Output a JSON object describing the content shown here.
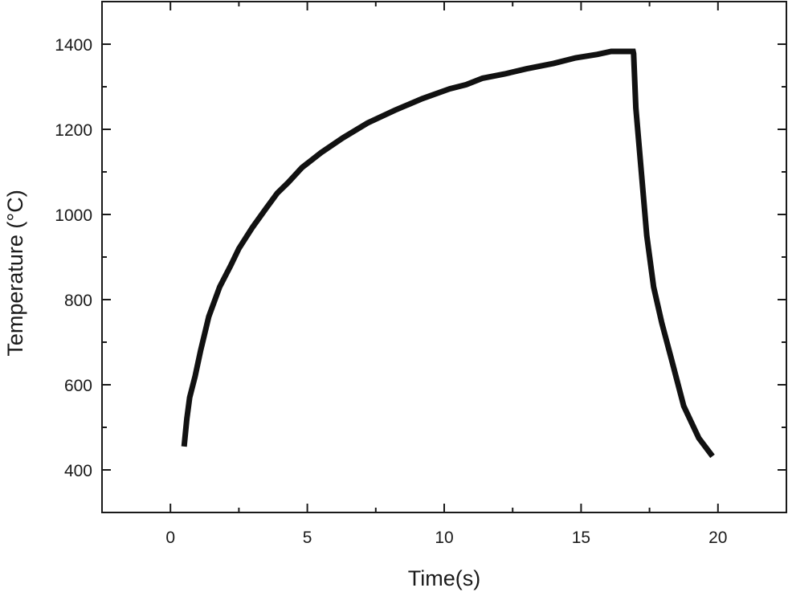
{
  "chart_data": {
    "type": "line",
    "title": "",
    "xlabel": "Time(s)",
    "ylabel": "Temperature (°C)",
    "xlim": [
      -2.5,
      22.5
    ],
    "ylim": [
      300,
      1500
    ],
    "x_ticks": [
      0,
      5,
      10,
      15,
      20
    ],
    "y_ticks": [
      400,
      600,
      800,
      1000,
      1200,
      1400
    ],
    "grid": false,
    "legend": "none",
    "series": [
      {
        "color": "#111111",
        "points": [
          [
            0.5,
            455
          ],
          [
            0.6,
            520
          ],
          [
            0.7,
            570
          ],
          [
            0.9,
            620
          ],
          [
            1.1,
            680
          ],
          [
            1.4,
            760
          ],
          [
            1.8,
            830
          ],
          [
            2.2,
            880
          ],
          [
            2.5,
            920
          ],
          [
            3.0,
            970
          ],
          [
            3.5,
            1015
          ],
          [
            3.9,
            1050
          ],
          [
            4.3,
            1075
          ],
          [
            4.8,
            1110
          ],
          [
            5.5,
            1145
          ],
          [
            6.3,
            1180
          ],
          [
            7.2,
            1215
          ],
          [
            8.2,
            1245
          ],
          [
            9.2,
            1272
          ],
          [
            10.2,
            1295
          ],
          [
            10.8,
            1305
          ],
          [
            11.4,
            1320
          ],
          [
            12.2,
            1330
          ],
          [
            13.0,
            1342
          ],
          [
            14.0,
            1355
          ],
          [
            14.8,
            1368
          ],
          [
            15.6,
            1376
          ],
          [
            16.1,
            1383
          ],
          [
            16.9,
            1383
          ],
          [
            16.92,
            1378
          ],
          [
            17.0,
            1250
          ],
          [
            17.2,
            1100
          ],
          [
            17.4,
            950
          ],
          [
            17.65,
            830
          ],
          [
            17.95,
            745
          ],
          [
            18.3,
            660
          ],
          [
            18.75,
            550
          ],
          [
            19.3,
            475
          ],
          [
            19.8,
            432
          ]
        ]
      }
    ]
  }
}
